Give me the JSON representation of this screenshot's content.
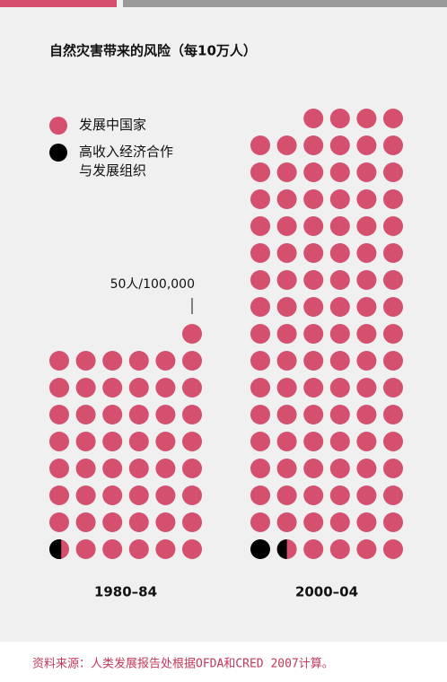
{
  "chart_data": {
    "type": "dot",
    "title": "自然灾害带来的风险（每10万人）",
    "categories": [
      "1980–84",
      "2000–04"
    ],
    "series": [
      {
        "name": "发展中国家",
        "color": "#d4506e",
        "values": [
          48.4,
          98.5
        ]
      },
      {
        "name": "高收入经济合作与发展组织",
        "color": "#000000",
        "values": [
          0.6,
          1.5
        ]
      }
    ],
    "annotation": "50人/100,000",
    "source": "资料来源：人类发展报告处根据OFDA和CRED 2007计算。"
  }
}
